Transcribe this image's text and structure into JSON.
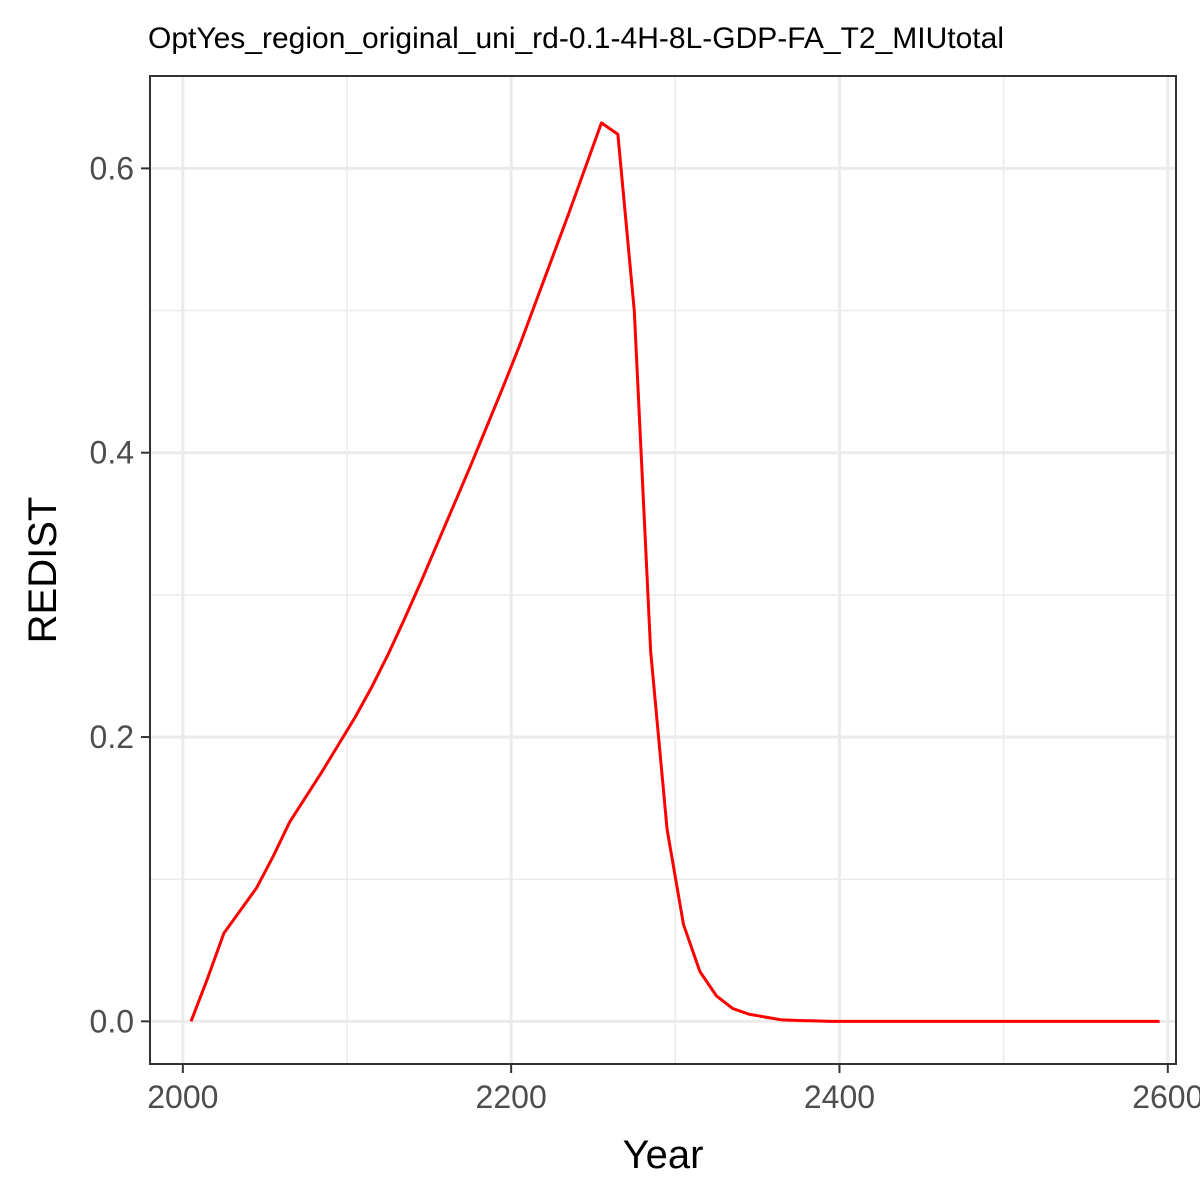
{
  "chart_data": {
    "type": "line",
    "title": "OptYes_region_original_uni_rd-0.1-4H-8L-GDP-FA_T2_MIUtotal",
    "xlabel": "Year",
    "ylabel": "REDIST",
    "xlim": [
      1980,
      2605
    ],
    "ylim": [
      -0.03,
      0.665
    ],
    "xticks": [
      2000,
      2200,
      2400,
      2600
    ],
    "xtick_labels": [
      "2000",
      "2200",
      "2400",
      "2600"
    ],
    "xminor": [
      2100,
      2300,
      2500
    ],
    "yticks": [
      0.0,
      0.2,
      0.4,
      0.6
    ],
    "ytick_labels": [
      "0.0",
      "0.2",
      "0.4",
      "0.6"
    ],
    "yminor": [
      0.1,
      0.3,
      0.5
    ],
    "grid": true,
    "legend": "none",
    "series": [
      {
        "color": "#ff0000",
        "x": [
          2005,
          2015,
          2025,
          2035,
          2045,
          2055,
          2065,
          2075,
          2085,
          2095,
          2105,
          2115,
          2125,
          2135,
          2145,
          2155,
          2165,
          2175,
          2185,
          2195,
          2205,
          2215,
          2225,
          2235,
          2245,
          2255,
          2265,
          2275,
          2285,
          2295,
          2305,
          2315,
          2325,
          2335,
          2345,
          2355,
          2365,
          2375,
          2385,
          2395,
          2405,
          2425,
          2445,
          2465,
          2485,
          2505,
          2525,
          2545,
          2565,
          2585,
          2595
        ],
        "y": [
          0.0,
          0.03,
          0.062,
          0.078,
          0.094,
          0.116,
          0.14,
          0.158,
          0.176,
          0.195,
          0.214,
          0.235,
          0.258,
          0.283,
          0.309,
          0.336,
          0.363,
          0.39,
          0.418,
          0.446,
          0.475,
          0.506,
          0.537,
          0.568,
          0.6,
          0.632,
          0.624,
          0.5,
          0.26,
          0.135,
          0.068,
          0.035,
          0.018,
          0.009,
          0.005,
          0.003,
          0.001,
          0.0006,
          0.0003,
          0.0,
          0.0,
          0.0,
          0.0,
          0.0,
          0.0,
          0.0,
          0.0,
          0.0,
          0.0,
          0.0,
          0.0
        ]
      }
    ]
  }
}
